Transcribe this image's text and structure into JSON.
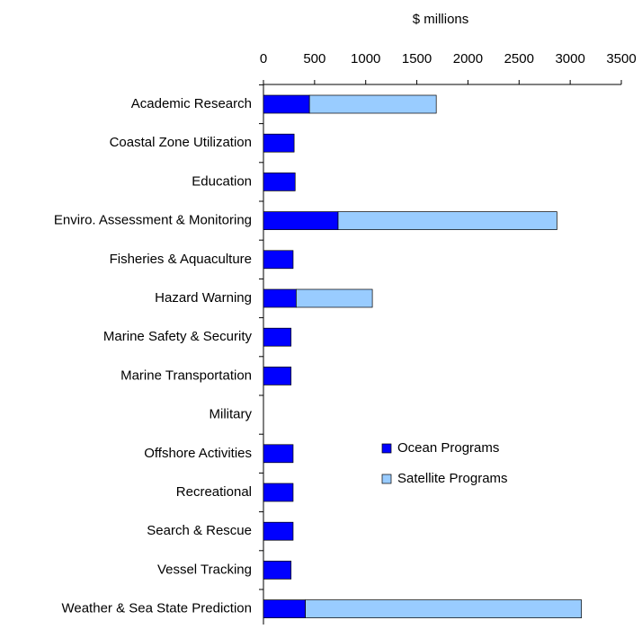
{
  "chart_data": {
    "type": "stacked_bar_horizontal",
    "x_label": "$ millions",
    "categories": [
      "Academic Research",
      "Coastal Zone Utilization",
      "Education",
      "Enviro. Assessment & Monitoring",
      "Fisheries & Aquaculture",
      "Hazard Warning",
      "Marine Safety & Security",
      "Marine Transportation",
      "Military",
      "Offshore Activities",
      "Recreational",
      "Search & Rescue",
      "Vessel Tracking",
      "Weather & Sea State Prediction"
    ],
    "series": [
      {
        "name": "Ocean Programs",
        "color": "#0000ff",
        "values": [
          450,
          300,
          310,
          730,
          290,
          320,
          270,
          270,
          0,
          290,
          290,
          290,
          270,
          410
        ]
      },
      {
        "name": "Satellite Programs",
        "color": "#99ccff",
        "values": [
          1240,
          0,
          0,
          2140,
          0,
          745,
          0,
          0,
          0,
          0,
          0,
          0,
          0,
          2700
        ]
      }
    ],
    "xlim": [
      0,
      3500
    ],
    "xticks": [
      0,
      500,
      1000,
      1500,
      2000,
      2500,
      3000,
      3500
    ],
    "grid": false,
    "legend": "right"
  }
}
